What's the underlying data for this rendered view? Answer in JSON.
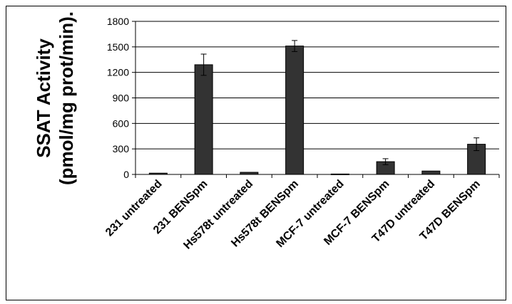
{
  "chart_data": {
    "type": "bar",
    "title": "",
    "ylabel_line1": "SSAT Activity",
    "ylabel_line2": "(pmol/mg prot/min).",
    "xlabel": "",
    "ylim": [
      0,
      1800
    ],
    "yticks": [
      "0",
      "300",
      "600",
      "900",
      "1200",
      "1500",
      "1800"
    ],
    "ytick_values": [
      0,
      300,
      600,
      900,
      1200,
      1500,
      1800
    ],
    "grid": true,
    "bar_color": "#333333",
    "categories": [
      "231 untreated",
      "231 BENSpm",
      "Hs578t untreated",
      "Hs578t BENSpm",
      "MCF-7 untreated",
      "MCF-7 BENSpm",
      "T47D untreated",
      "T47D BENSpm"
    ],
    "values": [
      15,
      1290,
      25,
      1510,
      5,
      150,
      40,
      355
    ],
    "errors": [
      0,
      125,
      0,
      65,
      0,
      35,
      0,
      75
    ]
  }
}
